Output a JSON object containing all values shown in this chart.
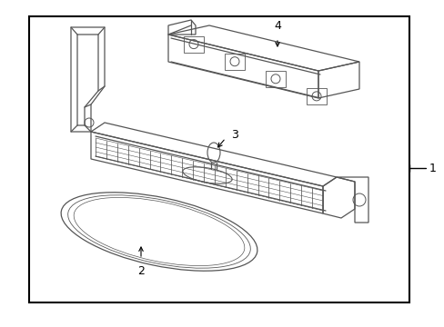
{
  "background_color": "#ffffff",
  "border_color": "#000000",
  "line_color": "#555555",
  "label_color": "#000000",
  "figsize": [
    4.89,
    3.6
  ],
  "dpi": 100,
  "border": [
    0.065,
    0.04,
    0.855,
    0.93
  ]
}
